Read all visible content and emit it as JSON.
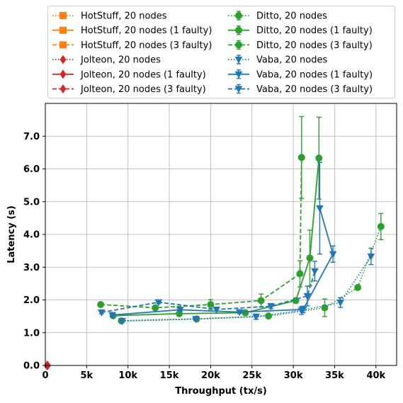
{
  "chart_data": {
    "type": "line",
    "xlabel": "Throughput (tx/s)",
    "ylabel": "Latency (s)",
    "xlim": [
      0,
      42500
    ],
    "ylim": [
      0,
      8.0
    ],
    "xticks": [
      0,
      5000,
      10000,
      15000,
      20000,
      25000,
      30000,
      35000,
      40000
    ],
    "xtick_labels": [
      "0",
      "5k",
      "10k",
      "15k",
      "20k",
      "25k",
      "30k",
      "35k",
      "40k"
    ],
    "yticks": [
      0,
      1,
      2,
      3,
      4,
      5,
      6,
      7
    ],
    "ytick_labels": [
      "0.0",
      "1.0",
      "2.0",
      "3.0",
      "4.0",
      "5.0",
      "6.0",
      "7.0"
    ],
    "grid": true,
    "legend_placement": "top, above plot, two columns",
    "series": [
      {
        "name": "HotStuff, 20 nodes",
        "color": "#ff7f0e",
        "marker": "square",
        "dash": "dotted",
        "points": []
      },
      {
        "name": "HotStuff, 20 nodes (1 faulty)",
        "color": "#ff7f0e",
        "marker": "square",
        "dash": "solid",
        "points": []
      },
      {
        "name": "HotStuff, 20 nodes (3 faulty)",
        "color": "#ff7f0e",
        "marker": "square",
        "dash": "dashed",
        "points": []
      },
      {
        "name": "Jolteon, 20 nodes",
        "color": "#d62728",
        "marker": "diamond",
        "dash": "dotted",
        "points": [
          [
            200,
            0.0
          ]
        ]
      },
      {
        "name": "Jolteon, 20 nodes (1 faulty)",
        "color": "#d62728",
        "marker": "diamond",
        "dash": "solid",
        "points": [
          [
            250,
            0.0
          ]
        ]
      },
      {
        "name": "Jolteon, 20 nodes (3 faulty)",
        "color": "#d62728",
        "marker": "diamond",
        "dash": "dashed",
        "points": [
          [
            300,
            0.0
          ]
        ]
      },
      {
        "name": "Ditto, 20 nodes",
        "color": "#2ca02c",
        "marker": "circle",
        "dash": "dotted",
        "points": [
          [
            9200,
            1.36,
            0.04
          ],
          [
            18300,
            1.42,
            0.04
          ],
          [
            27000,
            1.51,
            0.04
          ],
          [
            33800,
            1.76,
            0.27
          ],
          [
            37800,
            2.38,
            0.05
          ],
          [
            40600,
            4.24,
            0.4
          ]
        ]
      },
      {
        "name": "Ditto, 20 nodes (1 faulty)",
        "color": "#2ca02c",
        "marker": "circle",
        "dash": "solid",
        "points": [
          [
            8200,
            1.52,
            0.04
          ],
          [
            16200,
            1.58,
            0.04
          ],
          [
            24200,
            1.61,
            0.04
          ],
          [
            30300,
            1.98,
            0.05
          ],
          [
            32000,
            3.28,
            0.85
          ],
          [
            33100,
            6.33,
            1.25
          ]
        ]
      },
      {
        "name": "Ditto, 20 nodes (3 faulty)",
        "color": "#2ca02c",
        "marker": "circle",
        "dash": "dashed",
        "points": [
          [
            6700,
            1.86,
            0.04
          ],
          [
            13300,
            1.76,
            0.04
          ],
          [
            20000,
            1.86,
            0.15
          ],
          [
            26100,
            1.98,
            0.2
          ],
          [
            30800,
            2.8,
            0.4
          ],
          [
            31000,
            6.35,
            1.25
          ]
        ]
      },
      {
        "name": "Vaba, 20 nodes",
        "color": "#1f77b4",
        "marker": "triangle-down",
        "dash": "dotted",
        "points": [
          [
            9300,
            1.36,
            0.04
          ],
          [
            18200,
            1.42,
            0.04
          ],
          [
            25500,
            1.49,
            0.08
          ],
          [
            31000,
            1.68,
            0.12
          ],
          [
            35700,
            1.92,
            0.15
          ],
          [
            39400,
            3.33,
            0.25
          ]
        ]
      },
      {
        "name": "Vaba, 20 nodes (1 faulty)",
        "color": "#1f77b4",
        "marker": "triangle-down",
        "dash": "solid",
        "points": [
          [
            8100,
            1.54,
            0.04
          ],
          [
            16300,
            1.7,
            0.04
          ],
          [
            23500,
            1.63,
            0.04
          ],
          [
            31200,
            1.71,
            0.1
          ],
          [
            34800,
            3.4,
            0.25
          ],
          [
            33200,
            4.8,
            1.4
          ]
        ]
      },
      {
        "name": "Vaba, 20 nodes (3 faulty)",
        "color": "#1f77b4",
        "marker": "triangle-down",
        "dash": "dashed",
        "points": [
          [
            6800,
            1.62,
            0.04
          ],
          [
            13700,
            1.93,
            0.04
          ],
          [
            20700,
            1.71,
            0.05
          ],
          [
            27300,
            1.81,
            0.08
          ],
          [
            31700,
            2.12,
            0.3
          ],
          [
            32600,
            2.88,
            0.3
          ]
        ]
      }
    ]
  }
}
